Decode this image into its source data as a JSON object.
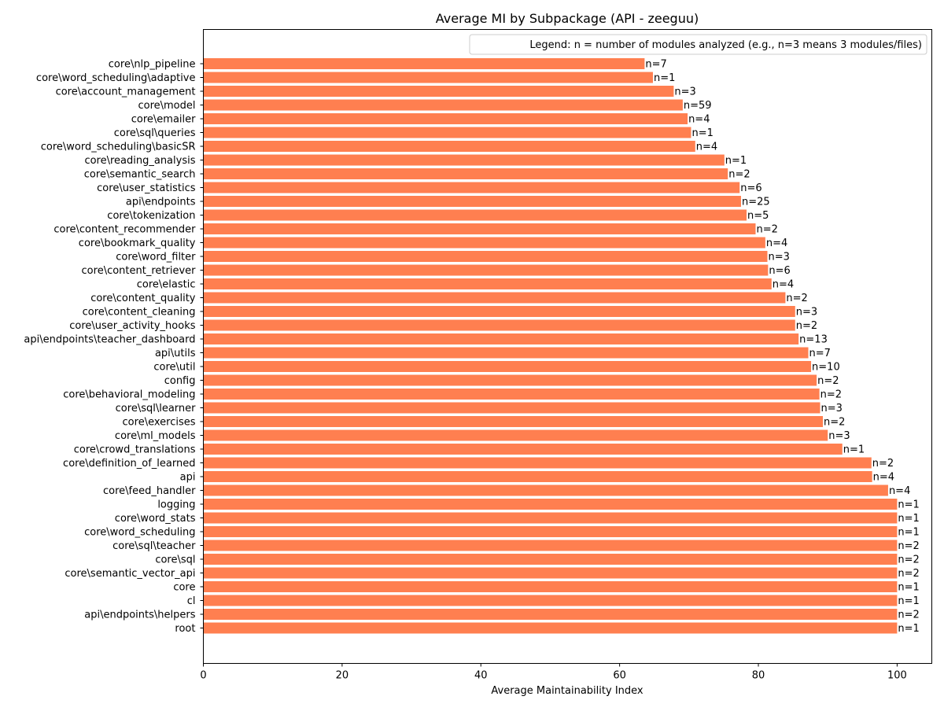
{
  "chart_data": {
    "type": "bar",
    "orientation": "horizontal",
    "title": "Average MI by Subpackage (API - zeeguu)",
    "xlabel": "Average Maintainability Index",
    "ylabel": "",
    "xlim": [
      0,
      105
    ],
    "xticks": [
      0,
      20,
      40,
      60,
      80,
      100
    ],
    "grid": false,
    "bar_color": "#ff7f50",
    "legend": {
      "text": "Legend: n = number of modules analyzed (e.g., n=3 means 3 modules/files)",
      "position": "top-right"
    },
    "categories": [
      "core\\nlp_pipeline",
      "core\\word_scheduling\\adaptive",
      "core\\account_management",
      "core\\model",
      "core\\emailer",
      "core\\sql\\queries",
      "core\\word_scheduling\\basicSR",
      "core\\reading_analysis",
      "core\\semantic_search",
      "core\\user_statistics",
      "api\\endpoints",
      "core\\tokenization",
      "core\\content_recommender",
      "core\\bookmark_quality",
      "core\\word_filter",
      "core\\content_retriever",
      "core\\elastic",
      "core\\content_quality",
      "core\\content_cleaning",
      "core\\user_activity_hooks",
      "api\\endpoints\\teacher_dashboard",
      "api\\utils",
      "core\\util",
      "config",
      "core\\behavioral_modeling",
      "core\\sql\\learner",
      "core\\exercises",
      "core\\ml_models",
      "core\\crowd_translations",
      "core\\definition_of_learned",
      "api",
      "core\\feed_handler",
      "logging",
      "core\\word_stats",
      "core\\word_scheduling",
      "core\\sql\\teacher",
      "core\\sql",
      "core\\semantic_vector_api",
      "core",
      "cl",
      "api\\endpoints\\helpers",
      "root"
    ],
    "values": [
      63.6,
      64.8,
      67.8,
      69.1,
      69.8,
      70.3,
      70.9,
      75.1,
      75.6,
      77.3,
      77.5,
      78.3,
      79.6,
      81.0,
      81.3,
      81.4,
      81.9,
      83.9,
      85.3,
      85.3,
      85.8,
      87.2,
      87.6,
      88.4,
      88.8,
      88.9,
      89.3,
      90.0,
      92.1,
      96.3,
      96.4,
      98.7,
      100.0,
      100.0,
      100.0,
      100.0,
      100.0,
      100.0,
      100.0,
      100.0,
      100.0,
      100.0
    ],
    "data_labels": [
      "n=7",
      "n=1",
      "n=3",
      "n=59",
      "n=4",
      "n=1",
      "n=4",
      "n=1",
      "n=2",
      "n=6",
      "n=25",
      "n=5",
      "n=2",
      "n=4",
      "n=3",
      "n=6",
      "n=4",
      "n=2",
      "n=3",
      "n=2",
      "n=13",
      "n=7",
      "n=10",
      "n=2",
      "n=2",
      "n=3",
      "n=2",
      "n=3",
      "n=1",
      "n=2",
      "n=4",
      "n=4",
      "n=1",
      "n=1",
      "n=1",
      "n=2",
      "n=2",
      "n=2",
      "n=1",
      "n=1",
      "n=2",
      "n=1"
    ]
  }
}
